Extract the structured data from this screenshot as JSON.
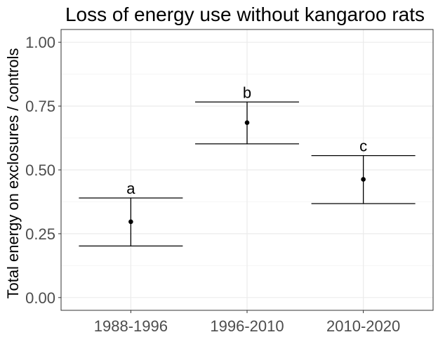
{
  "chart_data": {
    "type": "scatter",
    "title": "Loss of energy use without kangaroo rats",
    "xlabel": "",
    "ylabel": "Total energy on exclosures / controls",
    "ylim": [
      -0.05,
      1.05
    ],
    "yticks": [
      0.0,
      0.25,
      0.5,
      0.75,
      1.0
    ],
    "ytick_labels": [
      "0.00",
      "0.25",
      "0.50",
      "0.75",
      "1.00"
    ],
    "grid": true,
    "categories": [
      "1988-1996",
      "1996-2010",
      "2010-2020"
    ],
    "points": [
      {
        "category": "1988-1996",
        "estimate": 0.297,
        "lower": 0.202,
        "upper": 0.39,
        "label": "a"
      },
      {
        "category": "1996-2010",
        "estimate": 0.685,
        "lower": 0.602,
        "upper": 0.766,
        "label": "b"
      },
      {
        "category": "2010-2020",
        "estimate": 0.463,
        "lower": 0.368,
        "upper": 0.556,
        "label": "c"
      }
    ]
  }
}
